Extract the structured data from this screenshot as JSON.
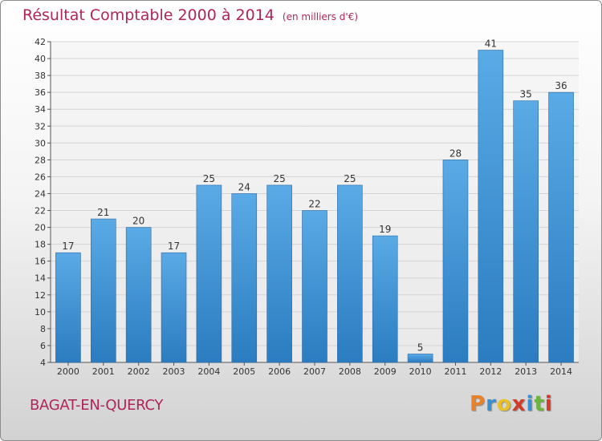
{
  "title": "Résultat Comptable 2000 à 2014",
  "subtitle": "(en milliers d'€)",
  "commune": "BAGAT-EN-QUERCY",
  "logo": {
    "letters": [
      "P",
      "r",
      "o",
      "x",
      "i",
      "t",
      "i"
    ],
    "colors": [
      "#e8822a",
      "#3a8fd0",
      "#e8c12a",
      "#d23a2a",
      "#3a8fd0",
      "#6cb33f",
      "#d23a2a"
    ]
  },
  "colors": {
    "bar": "#4a9ee0",
    "bar_dark": "#2f7fc2",
    "title": "#b0245a"
  },
  "chart_data": {
    "type": "bar",
    "title": "Résultat Comptable 2000 à 2014",
    "subtitle": "(en milliers d'€)",
    "categories": [
      "2000",
      "2001",
      "2002",
      "2003",
      "2004",
      "2005",
      "2006",
      "2007",
      "2008",
      "2009",
      "2010",
      "2011",
      "2012",
      "2013",
      "2014"
    ],
    "values": [
      17,
      21,
      20,
      17,
      25,
      24,
      25,
      22,
      25,
      19,
      5,
      28,
      41,
      35,
      36
    ],
    "ylim": [
      4,
      42
    ],
    "yticks": [
      4,
      6,
      8,
      10,
      12,
      14,
      16,
      18,
      20,
      22,
      24,
      26,
      28,
      30,
      32,
      34,
      36,
      38,
      40,
      42
    ],
    "grid": true,
    "xlabel": "",
    "ylabel": ""
  }
}
